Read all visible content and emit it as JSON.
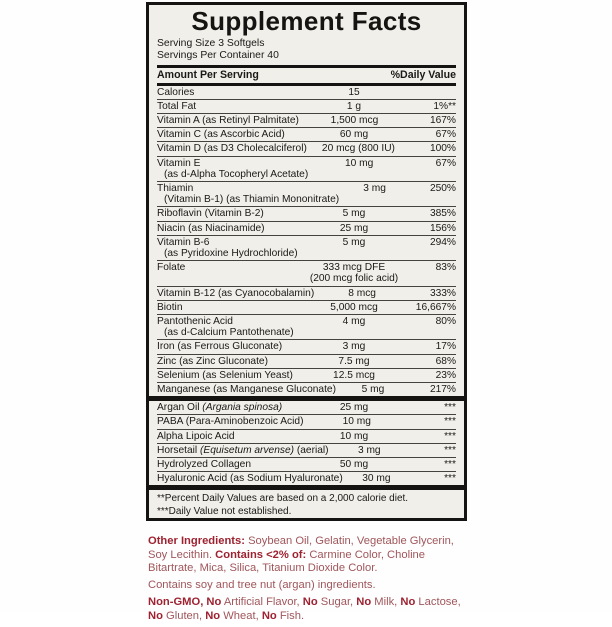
{
  "label": {
    "title": "Supplement Facts",
    "serving_size": "Serving Size 3 Softgels",
    "servings_per_container": "Servings Per Container 40",
    "header": {
      "amount": "Amount Per Serving",
      "dv": "%Daily Value"
    },
    "sections": [
      {
        "rows": [
          {
            "name": [
              {
                "t": "Calories"
              }
            ],
            "amount": "15",
            "dv": ""
          },
          {
            "name": [
              {
                "t": "Total Fat"
              }
            ],
            "amount": "1 g",
            "dv": "1%**"
          },
          {
            "name": [
              {
                "t": "Vitamin A (as Retinyl Palmitate)"
              }
            ],
            "amount": "1,500 mcg",
            "dv": "167%"
          },
          {
            "name": [
              {
                "t": "Vitamin C (as Ascorbic Acid)"
              }
            ],
            "amount": "60 mg",
            "dv": "67%"
          },
          {
            "name": [
              {
                "t": "Vitamin D (as D3 Cholecalciferol)"
              }
            ],
            "amount": "20 mcg (800 IU)",
            "dv": "100%"
          },
          {
            "name": [
              {
                "t": "Vitamin E"
              }
            ],
            "name2": "(as d-Alpha Tocopheryl Acetate)",
            "amount": "10 mg",
            "dv": "67%"
          },
          {
            "name": [
              {
                "t": "Thiamin"
              }
            ],
            "name2": "(Vitamin B-1) (as Thiamin Mononitrate)",
            "amount": "3 mg",
            "dv": "250%"
          },
          {
            "name": [
              {
                "t": "Riboflavin (Vitamin B-2)"
              }
            ],
            "amount": "5 mg",
            "dv": "385%"
          },
          {
            "name": [
              {
                "t": "Niacin (as Niacinamide)"
              }
            ],
            "amount": "25 mg",
            "dv": "156%"
          },
          {
            "name": [
              {
                "t": "Vitamin B-6"
              }
            ],
            "name2": "(as Pyridoxine Hydrochloride)",
            "amount": "5 mg",
            "dv": "294%"
          },
          {
            "name": [
              {
                "t": "Folate"
              }
            ],
            "amount": "333 mcg DFE",
            "amount2": "(200 mcg folic acid)",
            "dv": "83%"
          },
          {
            "name": [
              {
                "t": "Vitamin B-12 (as Cyanocobalamin)"
              }
            ],
            "amount": "8 mcg",
            "dv": "333%"
          },
          {
            "name": [
              {
                "t": "Biotin"
              }
            ],
            "amount": "5,000 mcg",
            "dv": "16,667%"
          },
          {
            "name": [
              {
                "t": "Pantothenic Acid"
              }
            ],
            "name2": "(as d-Calcium Pantothenate)",
            "amount": "4 mg",
            "dv": "80%"
          },
          {
            "name": [
              {
                "t": "Iron (as Ferrous Gluconate)"
              }
            ],
            "amount": "3 mg",
            "dv": "17%"
          },
          {
            "name": [
              {
                "t": "Zinc (as Zinc Gluconate)"
              }
            ],
            "amount": "7.5 mg",
            "dv": "68%"
          },
          {
            "name": [
              {
                "t": "Selenium (as Selenium Yeast)"
              }
            ],
            "amount": "12.5 mcg",
            "dv": "23%"
          },
          {
            "name": [
              {
                "t": "Manganese (as Manganese Gluconate)"
              }
            ],
            "amount": "5 mg",
            "dv": "217%"
          }
        ]
      },
      {
        "rows": [
          {
            "name": [
              {
                "t": "Argan Oil "
              },
              {
                "t": "(Argania spinosa)",
                "i": true
              }
            ],
            "amount": "25 mg",
            "dv": "***"
          },
          {
            "name": [
              {
                "t": "PABA (Para-Aminobenzoic Acid)"
              }
            ],
            "amount": "10 mg",
            "dv": "***"
          },
          {
            "name": [
              {
                "t": "Alpha Lipoic Acid"
              }
            ],
            "amount": "10 mg",
            "dv": "***"
          },
          {
            "name": [
              {
                "t": "Horsetail "
              },
              {
                "t": "(Equisetum arvense)",
                "i": true
              },
              {
                "t": " (aerial)"
              }
            ],
            "amount": "3 mg",
            "dv": "***"
          },
          {
            "name": [
              {
                "t": "Hydrolyzed Collagen"
              }
            ],
            "amount": "50 mg",
            "dv": "***"
          },
          {
            "name": [
              {
                "t": "Hyaluronic Acid (as Sodium Hyaluronate)"
              }
            ],
            "amount": "30 mg",
            "dv": "***"
          }
        ]
      }
    ],
    "footnotes": [
      "**Percent Daily Values are based on a 2,000 calorie diet.",
      "***Daily Value not established."
    ]
  },
  "bottom": {
    "paragraphs": [
      {
        "segments": [
          {
            "t": "Other Ingredients:",
            "b": true
          },
          {
            "t": " Soybean Oil, Gelatin, Vegetable Glycerin, Soy Lecithin. ",
            "b": false
          },
          {
            "t": "Contains <2% of:",
            "b": true
          },
          {
            "t": " Carmine Color, Choline Bitartrate, Mica, Silica, Titanium Dioxide Color.",
            "b": false
          }
        ]
      },
      {
        "segments": [
          {
            "t": "Contains soy and tree nut (argan) ingredients.",
            "b": false
          }
        ]
      },
      {
        "segments": [
          {
            "t": "Non-GMO, No",
            "b": true
          },
          {
            "t": " Artificial Flavor, ",
            "b": false
          },
          {
            "t": "No",
            "b": true
          },
          {
            "t": " Sugar, ",
            "b": false
          },
          {
            "t": "No",
            "b": true
          },
          {
            "t": " Milk, ",
            "b": false
          },
          {
            "t": "No",
            "b": true
          },
          {
            "t": " Lactose, ",
            "b": false
          },
          {
            "t": "No",
            "b": true
          },
          {
            "t": " Gluten, ",
            "b": false
          },
          {
            "t": "No",
            "b": true
          },
          {
            "t": " Wheat, ",
            "b": false
          },
          {
            "t": "No",
            "b": true
          },
          {
            "t": " Fish.",
            "b": false
          }
        ]
      }
    ]
  },
  "colors": {
    "panel_background": "#f1efe9",
    "ink": "#161412",
    "red_regular": "#a0565b",
    "red_bold": "#9e2130"
  }
}
